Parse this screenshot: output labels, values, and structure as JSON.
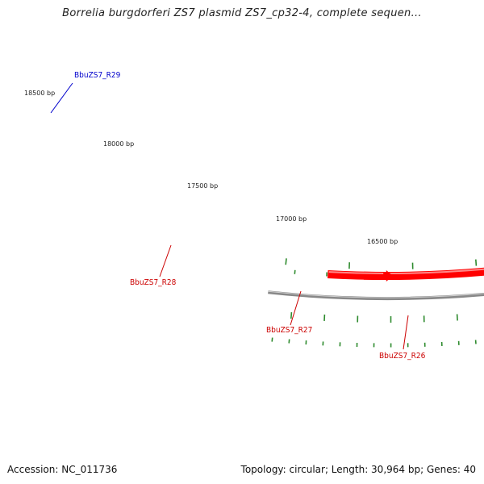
{
  "title": "Borrelia burgdorferi ZS7 plasmid ZS7_cp32-4, complete sequen...",
  "footer": {
    "accession": "Accession: NC_011736",
    "summary": "Topology: circular; Length: 30,964 bp; Genes: 40"
  },
  "colors": {
    "forward_gene": "#0000ff",
    "reverse_gene": "#ff0000",
    "backbone": "#888888",
    "ticks": "#2e8b2e",
    "forward_label": "#0000cc",
    "reverse_label": "#cc0000"
  },
  "scale_labels": [
    "18500 bp",
    "18000 bp",
    "17500 bp",
    "17000 bp",
    "16500 bp"
  ],
  "genes": [
    {
      "name": "BbuZS7_R29",
      "strand": "forward",
      "color_key": "forward_gene"
    },
    {
      "name": "BbuZS7_R28",
      "strand": "reverse",
      "color_key": "reverse_gene"
    },
    {
      "name": "BbuZS7_R27",
      "strand": "reverse",
      "color_key": "reverse_gene"
    },
    {
      "name": "BbuZS7_R26",
      "strand": "reverse",
      "color_key": "reverse_gene"
    }
  ]
}
